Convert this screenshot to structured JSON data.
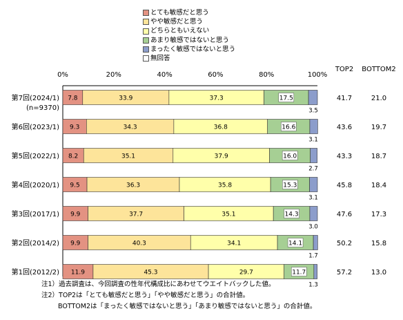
{
  "chart_data": {
    "type": "bar",
    "orientation": "horizontal",
    "stacked": true,
    "categories": [
      "第7回(2024/1)",
      "第6回(2023/1)",
      "第5回(2022/1)",
      "第4回(2020/1)",
      "第3回(2017/1)",
      "第2回(2014/2)",
      "第1回(2012/2)"
    ],
    "category_sublabels": [
      "(n=9370)",
      "",
      "",
      "",
      "",
      "",
      ""
    ],
    "series": [
      {
        "name": "とても敏感だと思う",
        "color": "#e39282",
        "values": [
          7.8,
          9.3,
          8.2,
          9.5,
          9.9,
          9.9,
          11.9
        ]
      },
      {
        "name": "やや敏感だと思う",
        "color": "#fde49a",
        "values": [
          33.9,
          34.3,
          35.1,
          36.3,
          37.7,
          40.3,
          45.3
        ]
      },
      {
        "name": "どちらともいえない",
        "color": "#ffffaa",
        "values": [
          37.3,
          36.8,
          37.9,
          35.8,
          35.1,
          34.1,
          29.7
        ]
      },
      {
        "name": "あまり敏感ではないと思う",
        "color": "#a6cf94",
        "values": [
          17.5,
          16.6,
          16.0,
          15.3,
          14.3,
          14.1,
          11.7
        ]
      },
      {
        "name": "まったく敏感ではないと思う",
        "color": "#8c9dcb",
        "values": [
          3.5,
          3.1,
          2.7,
          3.1,
          3.0,
          1.7,
          1.3
        ]
      },
      {
        "name": "無回答",
        "color": "#ffffff",
        "values": [
          0,
          0,
          0,
          0,
          0,
          0,
          0
        ]
      }
    ],
    "xlim": [
      0,
      100
    ],
    "xticks": [
      "0%",
      "20%",
      "40%",
      "60%",
      "80%",
      "100%"
    ],
    "top2_label": "TOP2",
    "bottom2_label": "BOTTOM2",
    "top2": [
      41.7,
      43.6,
      43.3,
      45.8,
      47.6,
      50.2,
      57.2
    ],
    "bottom2": [
      21.0,
      19.7,
      18.7,
      18.4,
      17.3,
      15.8,
      13.0
    ],
    "legend_position": "top"
  },
  "notes": [
    "注1）過去調査は、今回調査の性年代構成比にあわせてウエイトバックした値。",
    "注2）TOP2は「とても敏感だと思う」「やや敏感だと思う」の合計値。",
    "BOTTOM2は「まったく敏感ではないと思う」「あまり敏感ではないと思う」の合計値。"
  ]
}
